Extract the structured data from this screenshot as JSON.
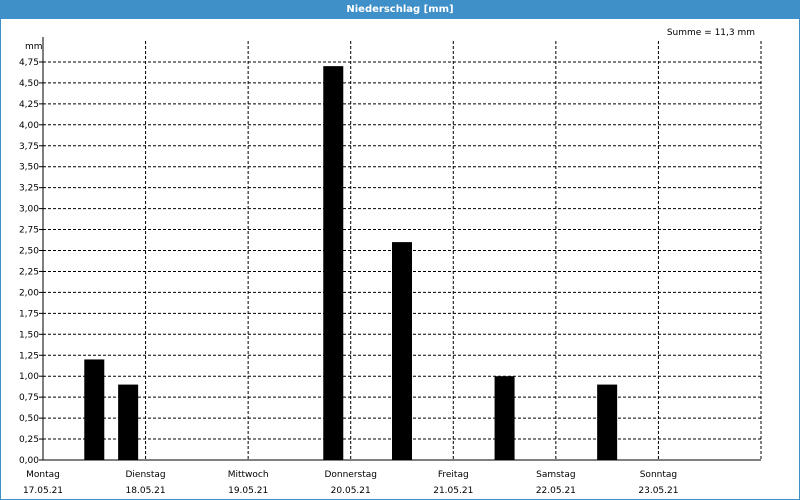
{
  "window": {
    "title": "Niederschlag [mm]"
  },
  "chart_data": {
    "type": "bar",
    "title": "Niederschlag [mm]",
    "ylabel": "mm",
    "ylim": [
      0,
      5
    ],
    "ytick_step": 0.25,
    "ytick_labels": [
      "0,00",
      "0,25",
      "0,50",
      "0,75",
      "1,00",
      "1,25",
      "1,50",
      "1,75",
      "2,00",
      "2,25",
      "2,50",
      "2,75",
      "3,00",
      "3,25",
      "3,50",
      "3,75",
      "4,00",
      "4,25",
      "4,50",
      "4,75"
    ],
    "xlim": [
      0,
      7
    ],
    "days": [
      {
        "name": "Montag",
        "date": "17.05.21"
      },
      {
        "name": "Dienstag",
        "date": "18.05.21"
      },
      {
        "name": "Mittwoch",
        "date": "19.05.21"
      },
      {
        "name": "Donnerstag",
        "date": "20.05.21"
      },
      {
        "name": "Freitag",
        "date": "21.05.21"
      },
      {
        "name": "Samstag",
        "date": "22.05.21"
      },
      {
        "name": "Sonntag",
        "date": "23.05.21"
      }
    ],
    "bars": [
      {
        "x": 0.5,
        "value": 1.2
      },
      {
        "x": 0.83,
        "value": 0.9
      },
      {
        "x": 2.83,
        "value": 4.7
      },
      {
        "x": 3.5,
        "value": 2.6
      },
      {
        "x": 4.5,
        "value": 1.0
      },
      {
        "x": 5.5,
        "value": 0.9
      }
    ],
    "annotation": "Summe = 11,3 mm",
    "grid": true,
    "colors": {
      "bar": "#000000",
      "grid": "#000000",
      "titlebar": "#3f8fc9"
    }
  }
}
